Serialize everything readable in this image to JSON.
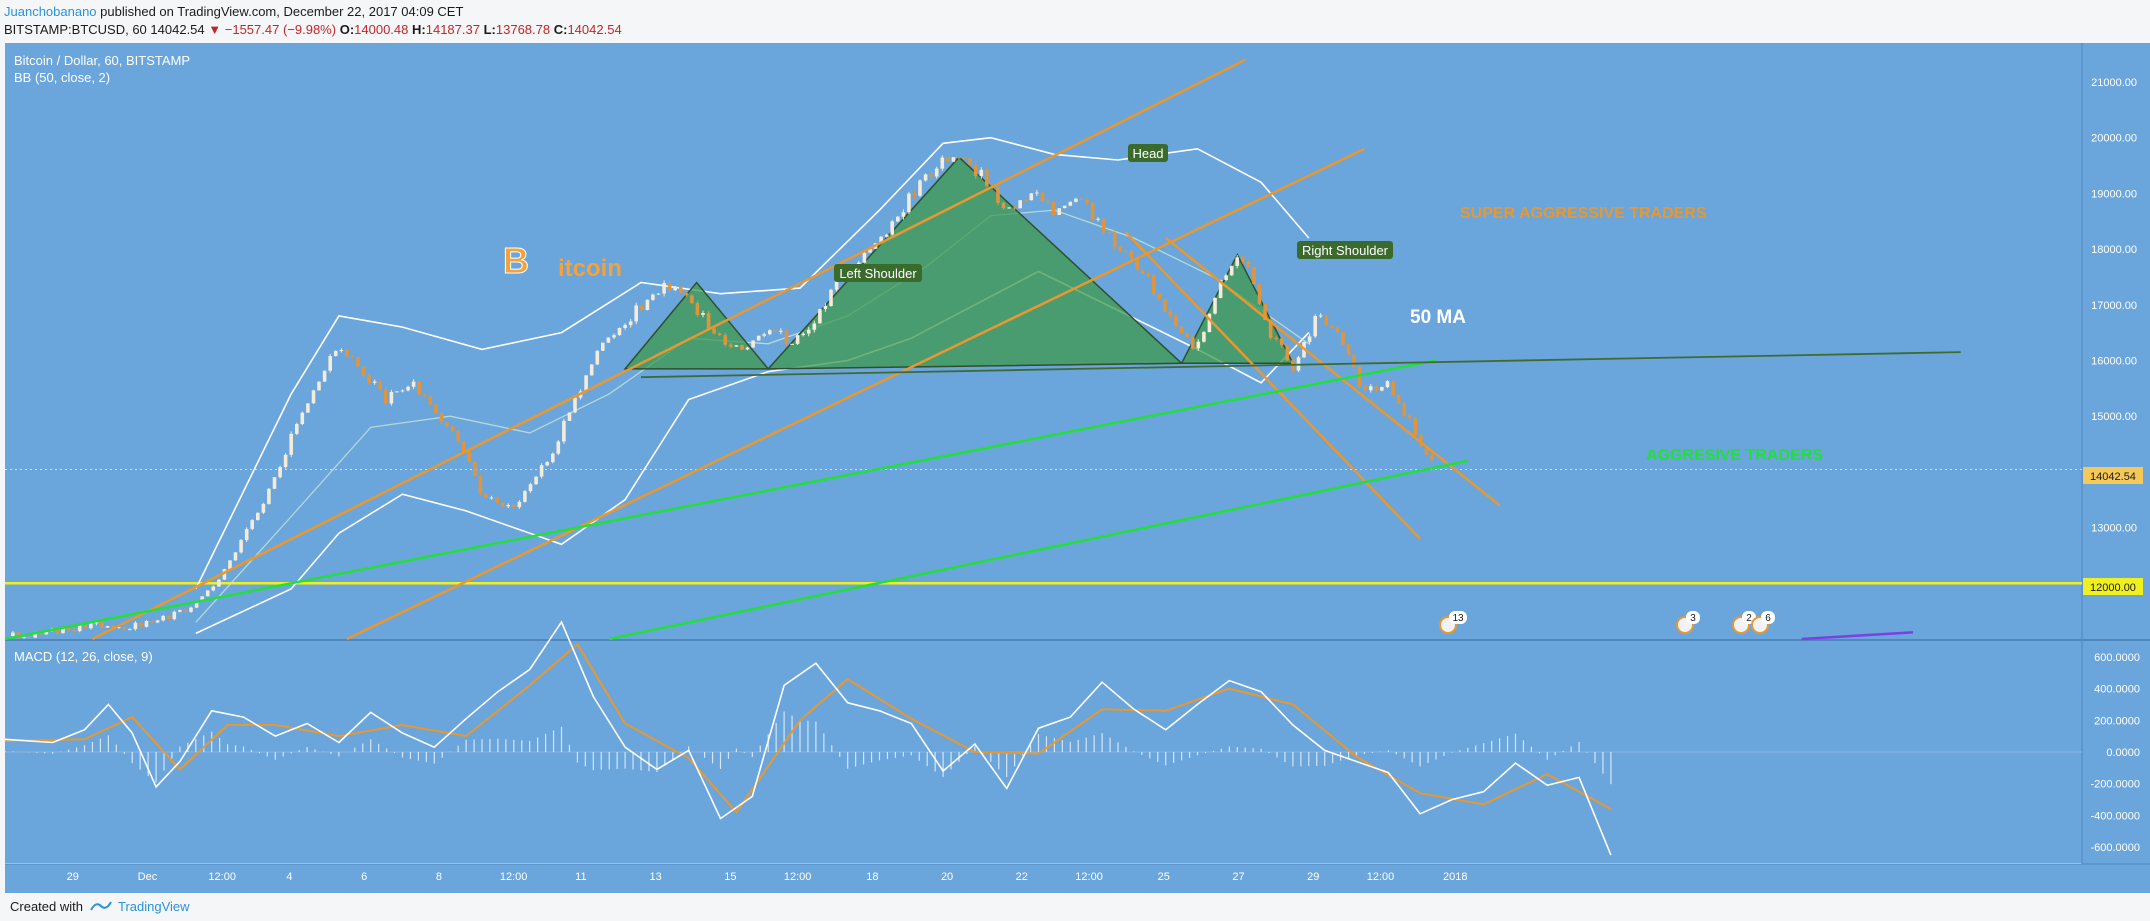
{
  "header": {
    "author": "Juanchobanano",
    "published_text": "published on TradingView.com, December 22, 2017 04:09 CET",
    "symbol": "BITSTAMP:BTCUSD, 60",
    "last": "14042.54",
    "change": "▼ −1557.47 (−9.98%)",
    "o_label": "O:",
    "o_value": "14000.48",
    "h_label": "H:",
    "h_value": "14187.37",
    "l_label": "L:",
    "l_value": "13768.78",
    "c_label": "C:",
    "c_value": "14042.54"
  },
  "legend": {
    "title": "Bitcoin / Dollar, 60, BITSTAMP",
    "bb": "BB (50, close, 2)",
    "macd": "MACD (12, 26, close, 9)"
  },
  "footer": {
    "created": "Created with",
    "brand": "TradingView"
  },
  "colors": {
    "background": "#6aa5dc",
    "panel": "#f5f6f8",
    "candle_up": "#f5ebd9",
    "candle_down": "#e0953c",
    "trendline_orange": "#e8982f",
    "trendline_green": "#22e03a",
    "neckline": "#3f6b33",
    "hs_fill": "#3f9a4c",
    "support_yellow": "#f0f020",
    "bb": "#ffffff",
    "macd_line": "#ffffff",
    "signal_line": "#e8982f"
  },
  "annotations": {
    "brand_letter": "B",
    "brand_rest": "itcoin",
    "head": "Head",
    "left_shoulder": "Left Shoulder",
    "right_shoulder": "Right Shoulder",
    "ma50": "50 MA",
    "super_aggressive": "SUPER AGGRESSIVE TRADERS",
    "aggressive": "AGGRESIVE TRADERS",
    "price_badge": "14042.54",
    "support_badge": "12000.00",
    "event_counts": [
      "13",
      "3",
      "2",
      "6"
    ]
  },
  "chart_data": [
    {
      "type": "candlestick",
      "ylim": [
        11000,
        21700
      ],
      "y_ticks": [
        "21000.00",
        "20000.00",
        "19000.00",
        "18000.00",
        "17000.00",
        "16000.00",
        "15000.00",
        "14000.00",
        "13000.00",
        "12000.00"
      ],
      "x_ticks": [
        "29",
        "Dec",
        "12:00",
        "4",
        "6",
        "8",
        "12:00",
        "11",
        "13",
        "15",
        "12:00",
        "18",
        "20",
        "22",
        "12:00",
        "25",
        "27",
        "29",
        "12:00",
        "2018"
      ],
      "price_path": [
        [
          0,
          11050
        ],
        [
          3,
          11080
        ],
        [
          6,
          11150
        ],
        [
          9,
          11200
        ],
        [
          12,
          11250
        ],
        [
          15,
          11180
        ],
        [
          18,
          11300
        ],
        [
          21,
          11420
        ],
        [
          24,
          11650
        ],
        [
          27,
          12100
        ],
        [
          30,
          12800
        ],
        [
          33,
          13600
        ],
        [
          36,
          14600
        ],
        [
          39,
          15500
        ],
        [
          42,
          16300
        ],
        [
          45,
          15800
        ],
        [
          48,
          15300
        ],
        [
          51,
          15600
        ],
        [
          54,
          15100
        ],
        [
          57,
          14600
        ],
        [
          60,
          13600
        ],
        [
          63,
          13300
        ],
        [
          66,
          13700
        ],
        [
          69,
          14400
        ],
        [
          72,
          15400
        ],
        [
          75,
          16300
        ],
        [
          78,
          16700
        ],
        [
          81,
          17100
        ],
        [
          84,
          17400
        ],
        [
          87,
          16900
        ],
        [
          90,
          16400
        ],
        [
          93,
          16200
        ],
        [
          96,
          16600
        ],
        [
          99,
          16300
        ],
        [
          102,
          16800
        ],
        [
          105,
          17500
        ],
        [
          108,
          17900
        ],
        [
          111,
          18300
        ],
        [
          114,
          19000
        ],
        [
          117,
          19500
        ],
        [
          120,
          19700
        ],
        [
          123,
          19300
        ],
        [
          126,
          18700
        ],
        [
          129,
          19000
        ],
        [
          132,
          18700
        ],
        [
          135,
          18900
        ],
        [
          138,
          18400
        ],
        [
          141,
          17900
        ],
        [
          144,
          17400
        ],
        [
          147,
          16600
        ],
        [
          150,
          16200
        ],
        [
          153,
          17500
        ],
        [
          156,
          17900
        ],
        [
          159,
          16500
        ],
        [
          162,
          15900
        ],
        [
          165,
          16800
        ],
        [
          168,
          16400
        ],
        [
          171,
          15400
        ],
        [
          174,
          15600
        ],
        [
          177,
          14800
        ],
        [
          180,
          14042
        ]
      ],
      "bb_upper_path": [
        [
          24,
          11900
        ],
        [
          36,
          15400
        ],
        [
          42,
          16800
        ],
        [
          50,
          16600
        ],
        [
          60,
          16200
        ],
        [
          70,
          16500
        ],
        [
          80,
          17400
        ],
        [
          90,
          17200
        ],
        [
          100,
          17300
        ],
        [
          110,
          18700
        ],
        [
          118,
          19900
        ],
        [
          124,
          20000
        ],
        [
          132,
          19700
        ],
        [
          140,
          19600
        ],
        [
          150,
          19800
        ],
        [
          158,
          19200
        ],
        [
          164,
          18200
        ]
      ],
      "bb_lower_path": [
        [
          24,
          11100
        ],
        [
          36,
          11900
        ],
        [
          42,
          12900
        ],
        [
          50,
          13600
        ],
        [
          58,
          13300
        ],
        [
          64,
          13000
        ],
        [
          70,
          12700
        ],
        [
          78,
          13500
        ],
        [
          86,
          15300
        ],
        [
          96,
          15800
        ],
        [
          106,
          16000
        ],
        [
          114,
          16400
        ],
        [
          122,
          17000
        ],
        [
          130,
          17600
        ],
        [
          140,
          16900
        ],
        [
          150,
          16200
        ],
        [
          158,
          15600
        ],
        [
          164,
          16500
        ]
      ],
      "ma_path": [
        [
          24,
          11300
        ],
        [
          36,
          13200
        ],
        [
          46,
          14800
        ],
        [
          56,
          15000
        ],
        [
          66,
          14700
        ],
        [
          76,
          15400
        ],
        [
          86,
          16400
        ],
        [
          96,
          16300
        ],
        [
          106,
          16800
        ],
        [
          116,
          17700
        ],
        [
          124,
          18600
        ],
        [
          132,
          18700
        ],
        [
          142,
          18200
        ],
        [
          152,
          17500
        ],
        [
          160,
          16700
        ],
        [
          164,
          16300
        ]
      ],
      "patterns": [
        {
          "name": "Left Shoulder",
          "points": [
            [
              78,
              15850
            ],
            [
              87,
              17400
            ],
            [
              96,
              15850
            ]
          ]
        },
        {
          "name": "Head",
          "points": [
            [
              96,
              15850
            ],
            [
              120,
              19650
            ],
            [
              148,
              15950
            ]
          ]
        },
        {
          "name": "Right Shoulder",
          "points": [
            [
              148,
              15950
            ],
            [
              155,
              17900
            ],
            [
              162,
              15950
            ]
          ]
        }
      ],
      "trendlines": [
        {
          "color": "orange",
          "from": [
            11,
            11000
          ],
          "to": [
            156,
            21400
          ]
        },
        {
          "color": "orange",
          "from": [
            43,
            11000
          ],
          "to": [
            171,
            19800
          ]
        },
        {
          "color": "orange",
          "from": [
            141,
            18300
          ],
          "to": [
            178,
            12800
          ]
        },
        {
          "color": "orange",
          "from": [
            146,
            18200
          ],
          "to": [
            188,
            13400
          ]
        },
        {
          "color": "green",
          "from": [
            0,
            11000
          ],
          "to": [
            180,
            16000
          ]
        },
        {
          "color": "green",
          "from": [
            76,
            11000
          ],
          "to": [
            184,
            14200
          ]
        },
        {
          "color": "neckline",
          "from": [
            80,
            15700
          ],
          "to": [
            246,
            16150
          ]
        },
        {
          "color": "purple",
          "from": [
            226,
            11000
          ],
          "to": [
            240,
            11120
          ]
        }
      ],
      "horizontal_levels": [
        12000,
        14042.54
      ]
    },
    {
      "type": "line",
      "title": "MACD (12, 26, close, 9)",
      "ylim": [
        -700,
        700
      ],
      "y_ticks": [
        "600.0000",
        "400.0000",
        "200.0000",
        "0.0000",
        "-200.0000",
        "-400.0000",
        "-600.0000"
      ],
      "series": [
        {
          "name": "MACD",
          "points": [
            [
              0,
              80
            ],
            [
              6,
              60
            ],
            [
              10,
              140
            ],
            [
              13,
              300
            ],
            [
              16,
              120
            ],
            [
              19,
              -220
            ],
            [
              22,
              -60
            ],
            [
              26,
              260
            ],
            [
              30,
              220
            ],
            [
              34,
              100
            ],
            [
              38,
              180
            ],
            [
              42,
              60
            ],
            [
              46,
              250
            ],
            [
              50,
              120
            ],
            [
              54,
              30
            ],
            [
              58,
              210
            ],
            [
              62,
              380
            ],
            [
              66,
              520
            ],
            [
              70,
              820
            ],
            [
              74,
              350
            ],
            [
              78,
              30
            ],
            [
              82,
              -110
            ],
            [
              86,
              10
            ],
            [
              90,
              -420
            ],
            [
              94,
              -280
            ],
            [
              98,
              420
            ],
            [
              102,
              560
            ],
            [
              106,
              310
            ],
            [
              110,
              260
            ],
            [
              114,
              180
            ],
            [
              118,
              -120
            ],
            [
              122,
              50
            ],
            [
              126,
              -230
            ],
            [
              130,
              150
            ],
            [
              134,
              220
            ],
            [
              138,
              440
            ],
            [
              142,
              270
            ],
            [
              146,
              140
            ],
            [
              150,
              300
            ],
            [
              154,
              450
            ],
            [
              158,
              380
            ],
            [
              162,
              170
            ],
            [
              166,
              10
            ],
            [
              170,
              -60
            ],
            [
              174,
              -130
            ],
            [
              178,
              -390
            ],
            [
              182,
              -300
            ],
            [
              186,
              -250
            ],
            [
              190,
              -70
            ],
            [
              194,
              -210
            ],
            [
              198,
              -160
            ],
            [
              202,
              -650
            ]
          ]
        },
        {
          "name": "Signal",
          "points": [
            [
              0,
              70
            ],
            [
              10,
              80
            ],
            [
              16,
              220
            ],
            [
              22,
              -110
            ],
            [
              28,
              170
            ],
            [
              34,
              170
            ],
            [
              42,
              100
            ],
            [
              50,
              170
            ],
            [
              58,
              100
            ],
            [
              66,
              420
            ],
            [
              72,
              680
            ],
            [
              78,
              180
            ],
            [
              86,
              -40
            ],
            [
              92,
              -380
            ],
            [
              100,
              200
            ],
            [
              106,
              460
            ],
            [
              114,
              210
            ],
            [
              122,
              0
            ],
            [
              130,
              -10
            ],
            [
              138,
              270
            ],
            [
              146,
              260
            ],
            [
              154,
              400
            ],
            [
              162,
              300
            ],
            [
              170,
              -30
            ],
            [
              178,
              -260
            ],
            [
              186,
              -330
            ],
            [
              194,
              -140
            ],
            [
              202,
              -360
            ]
          ]
        }
      ]
    }
  ]
}
